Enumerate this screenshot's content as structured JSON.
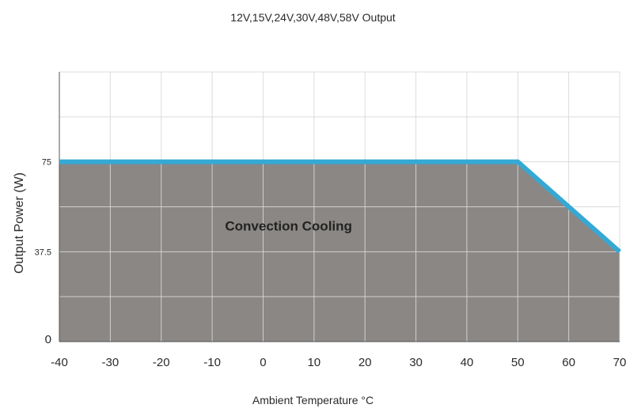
{
  "chart_data": {
    "type": "area",
    "title": "12V,15V,24V,30V,48V,58V Output",
    "xlabel": "Ambient Temperature °C",
    "ylabel": "Output Power (W)",
    "xlim": [
      -40,
      70
    ],
    "ylim": [
      0,
      112.5
    ],
    "x_ticks": [
      "-40",
      "-30",
      "-20",
      "-10",
      "0",
      "10",
      "20",
      "30",
      "40",
      "50",
      "60",
      "70"
    ],
    "x_tick_values": [
      -40,
      -30,
      -20,
      -10,
      0,
      10,
      20,
      30,
      40,
      50,
      60,
      70
    ],
    "y_ticks": [
      "0",
      "37.5",
      "75"
    ],
    "y_tick_values": [
      0,
      37.5,
      75
    ],
    "grid": true,
    "series": [
      {
        "x": [
          -40,
          50,
          70
        ],
        "y": [
          75,
          75,
          37.5
        ]
      }
    ],
    "annotations": [
      {
        "text": "Convection Cooling",
        "x": 5,
        "y": 48
      }
    ],
    "colors": {
      "fill": "#8a8784",
      "line": "#35a9d4",
      "grid": "#d8d8d8",
      "axis": "#555555"
    }
  }
}
